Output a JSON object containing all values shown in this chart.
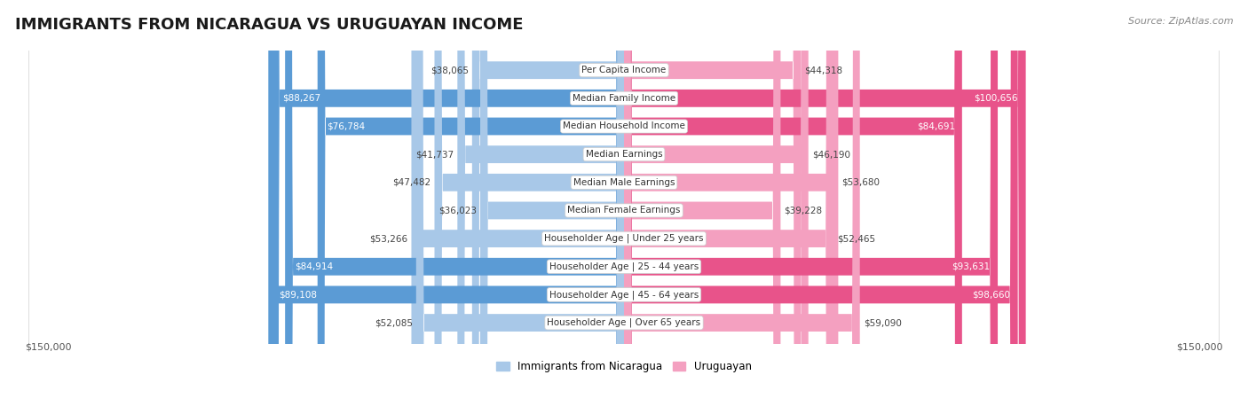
{
  "title": "IMMIGRANTS FROM NICARAGUA VS URUGUAYAN INCOME",
  "source": "Source: ZipAtlas.com",
  "categories": [
    "Per Capita Income",
    "Median Family Income",
    "Median Household Income",
    "Median Earnings",
    "Median Male Earnings",
    "Median Female Earnings",
    "Householder Age | Under 25 years",
    "Householder Age | 25 - 44 years",
    "Householder Age | 45 - 64 years",
    "Householder Age | Over 65 years"
  ],
  "nicaragua_values": [
    38065,
    88267,
    76784,
    41737,
    47482,
    36023,
    53266,
    84914,
    89108,
    52085
  ],
  "uruguayan_values": [
    44318,
    100656,
    84691,
    46190,
    53680,
    39228,
    52465,
    93631,
    98660,
    59090
  ],
  "nicaragua_color_light": "#a8c8e8",
  "nicaragua_color_dark": "#5b9bd5",
  "uruguayan_color_light": "#f4a0c0",
  "uruguayan_color_dark": "#e8538a",
  "bar_height": 0.62,
  "xlim": 150000,
  "x_label_left": "$150,000",
  "x_label_right": "$150,000",
  "legend_nicaragua": "Immigrants from Nicaragua",
  "legend_uruguayan": "Uruguayan",
  "title_fontsize": 13,
  "source_fontsize": 8,
  "label_fontsize": 8,
  "category_fontsize": 7.5,
  "value_fontsize": 7.5,
  "background_color": "#ffffff",
  "row_bg_even": "#f2f2f2",
  "row_bg_odd": "#ffffff",
  "row_border_color": "#d8d8d8",
  "nic_dark_threshold": 65000,
  "uru_dark_threshold": 65000
}
